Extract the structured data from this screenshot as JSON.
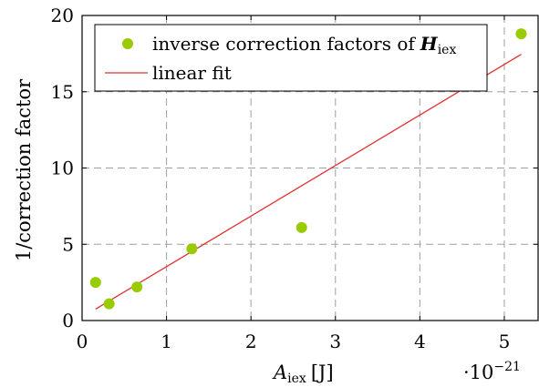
{
  "chart_data": {
    "type": "scatter",
    "title": "",
    "xlabel": "A",
    "xlabel_sub": "iex",
    "xlabel_unit": "[J]",
    "ylabel": "1/correction factor",
    "x_multiplier": "·10",
    "x_multiplier_exp": "−21",
    "xlim": [
      0,
      5.4
    ],
    "ylim": [
      0,
      20
    ],
    "xticks": [
      0,
      1,
      2,
      3,
      4,
      5
    ],
    "yticks": [
      0,
      5,
      10,
      15,
      20
    ],
    "grid": true,
    "legend_position": "top-left",
    "series": [
      {
        "name": "inverse correction factors of",
        "name_symbol": "H",
        "name_sub": "iex",
        "kind": "scatter",
        "color": "#99cc00",
        "x": [
          0.16,
          0.32,
          0.65,
          1.3,
          2.6,
          5.2
        ],
        "y": [
          2.5,
          1.1,
          2.2,
          4.7,
          6.1,
          18.8
        ]
      },
      {
        "name": "linear fit",
        "kind": "line",
        "color": "#e03030",
        "x": [
          0.16,
          5.2
        ],
        "y": [
          0.75,
          17.45
        ]
      }
    ]
  }
}
